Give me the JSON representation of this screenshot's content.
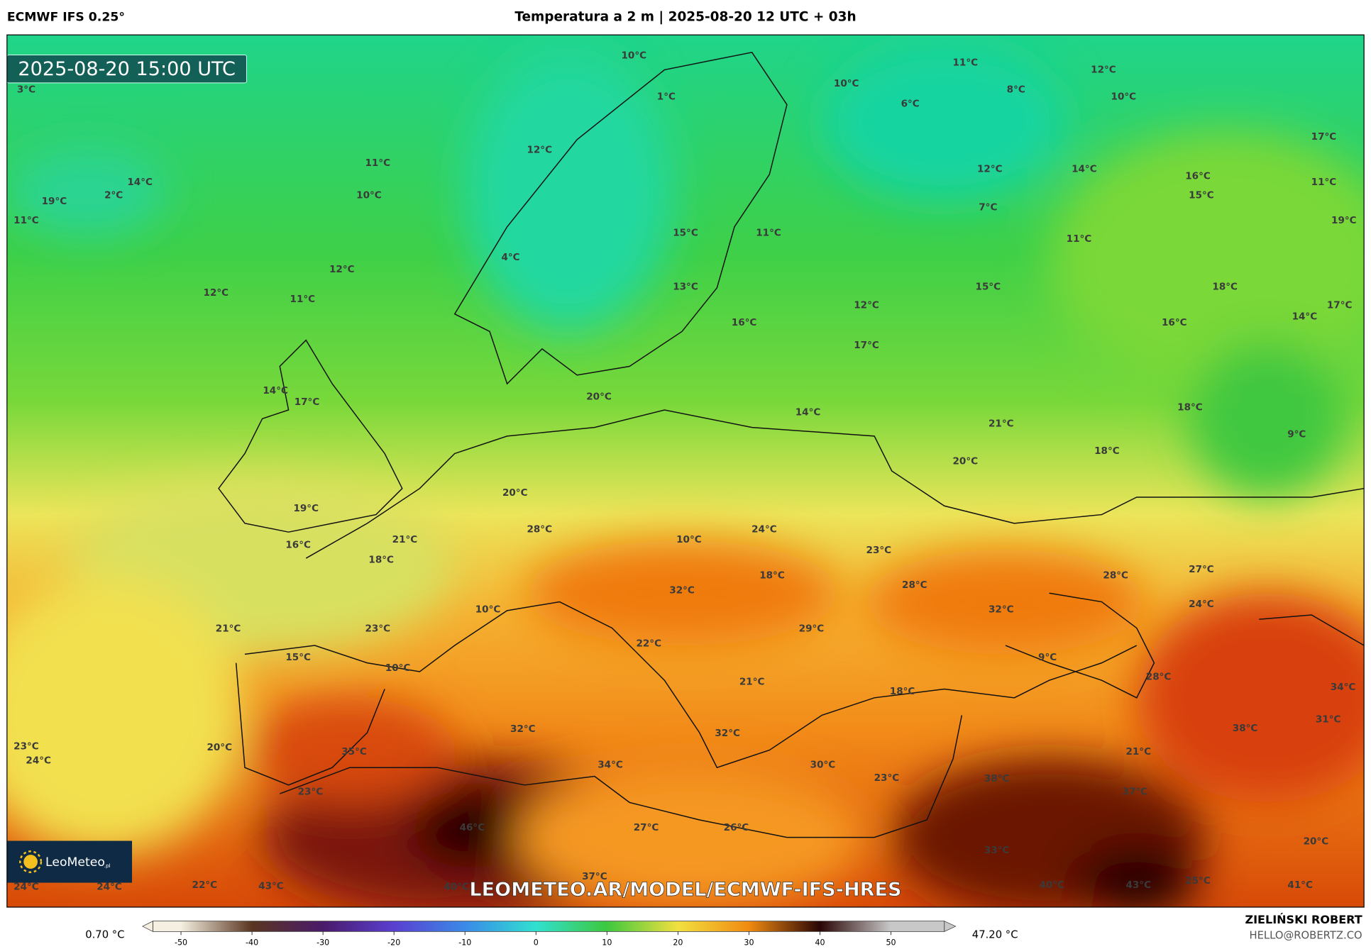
{
  "header": {
    "model": "ECMWF IFS 0.25°",
    "title": "Temperatura a 2 m | 2025-08-20 12 UTC + 03h"
  },
  "map": {
    "timestamp": "2025-08-20 15:00 UTC",
    "labels": [
      "3°C",
      "10°C",
      "11°C",
      "12°C",
      "10°C",
      "8°C",
      "1°C",
      "10°C",
      "6°C",
      "17°C",
      "14°C",
      "2°C",
      "19°C",
      "11°C",
      "11°C",
      "12°C",
      "10°C",
      "12°C",
      "14°C",
      "16°C",
      "11°C",
      "15°C",
      "7°C",
      "19°C",
      "15°C",
      "11°C",
      "11°C",
      "4°C",
      "12°C",
      "12°C",
      "11°C",
      "13°C",
      "15°C",
      "18°C",
      "17°C",
      "12°C",
      "16°C",
      "16°C",
      "14°C",
      "17°C",
      "14°C",
      "17°C",
      "20°C",
      "18°C",
      "14°C",
      "21°C",
      "9°C",
      "18°C",
      "20°C",
      "20°C",
      "19°C",
      "24°C",
      "28°C",
      "21°C",
      "16°C",
      "10°C",
      "23°C",
      "18°C",
      "27°C",
      "28°C",
      "18°C",
      "28°C",
      "32°C",
      "32°C",
      "24°C",
      "10°C",
      "21°C",
      "29°C",
      "23°C",
      "22°C",
      "15°C",
      "9°C",
      "10°C",
      "28°C",
      "21°C",
      "18°C",
      "34°C",
      "31°C",
      "38°C",
      "32°C",
      "32°C",
      "23°C",
      "24°C",
      "20°C",
      "35°C",
      "21°C",
      "34°C",
      "30°C",
      "23°C",
      "38°C",
      "23°C",
      "37°C",
      "46°C",
      "27°C",
      "26°C",
      "20°C",
      "33°C",
      "37°C",
      "25°C",
      "24°C",
      "24°C",
      "22°C",
      "43°C",
      "40°C",
      "40°C",
      "43°C",
      "41°C"
    ],
    "logo": "LeoMeteo",
    "logo_suffix": ".pl",
    "url": "LEOMETEO.AR/MODEL/ECMWF-IFS-HRES"
  },
  "colorbar": {
    "min_label": "0.70 °C",
    "max_label": "47.20 °C",
    "ticks": [
      -50,
      -40,
      -30,
      -20,
      -10,
      0,
      10,
      20,
      30,
      40,
      50
    ],
    "colors": [
      "#f4efe0",
      "#5a3520",
      "#4a1a6a",
      "#5a3fd0",
      "#3a8ae8",
      "#30e0d0",
      "#3ec83e",
      "#f2e040",
      "#f08a10",
      "#2a0505",
      "#c8c8c8"
    ]
  },
  "footer": {
    "author": "ZIELIŃSKI ROBERT",
    "email": "HELLO@ROBERTZ.CO"
  }
}
